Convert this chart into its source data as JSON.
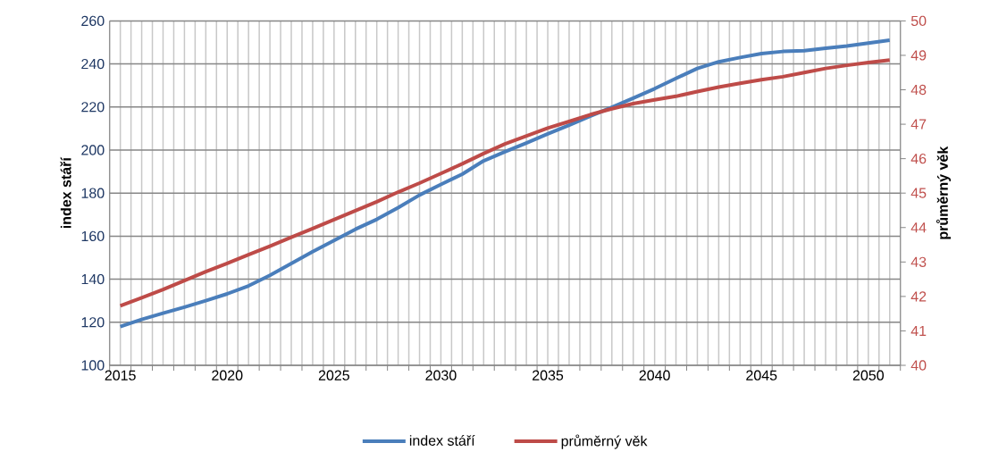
{
  "chart_data": {
    "type": "line",
    "ylabel": "index stáří",
    "y2label": "průměrný věk",
    "categories": [
      "2015",
      null,
      null,
      null,
      null,
      "2020",
      null,
      null,
      null,
      null,
      "2025",
      null,
      null,
      null,
      null,
      "2030",
      null,
      null,
      null,
      null,
      "2035",
      null,
      null,
      null,
      null,
      "2040",
      null,
      null,
      null,
      null,
      "2045",
      null,
      null,
      null,
      null,
      "2050",
      null
    ],
    "series": [
      {
        "name": "index stáří",
        "color": "#4a7ebb",
        "values": [
          118.0,
          121.3,
          124.2,
          127.0,
          130.0,
          133.2,
          136.9,
          141.8,
          147.3,
          152.8,
          158.0,
          163.2,
          167.8,
          173.2,
          179.1,
          184.0,
          188.8,
          195.0,
          199.2,
          203.3,
          207.5,
          211.6,
          215.8,
          219.9,
          224.1,
          228.5,
          233.3,
          237.9,
          241.0,
          243.0,
          244.8,
          245.8,
          246.2,
          247.3,
          248.3,
          249.7,
          251.0
        ]
      },
      {
        "name": "průměrný věk",
        "color": "#be4b48",
        "axis": "y2",
        "values": [
          41.73,
          41.96,
          42.2,
          42.46,
          42.72,
          42.96,
          43.21,
          43.46,
          43.72,
          43.97,
          44.23,
          44.49,
          44.75,
          45.03,
          45.29,
          45.57,
          45.85,
          46.15,
          46.43,
          46.66,
          46.89,
          47.08,
          47.28,
          47.45,
          47.6,
          47.71,
          47.81,
          47.95,
          48.08,
          48.19,
          48.29,
          48.38,
          48.5,
          48.62,
          48.71,
          48.79,
          48.86
        ]
      }
    ],
    "ylim": [
      100,
      260
    ],
    "yticks": [
      100,
      120,
      140,
      160,
      180,
      200,
      220,
      240,
      260
    ],
    "y2lim": [
      40,
      50
    ],
    "y2ticks": [
      40,
      41,
      42,
      43,
      44,
      45,
      46,
      47,
      48,
      49,
      50
    ],
    "grid": true,
    "legend": "bottom"
  }
}
